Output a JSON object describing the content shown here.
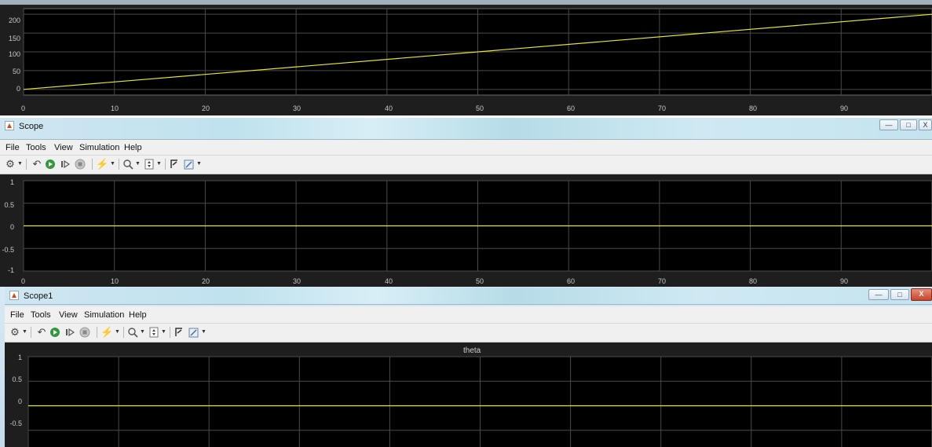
{
  "top_plot": {
    "y_ticks": [
      "200",
      "150",
      "100",
      "50",
      "0"
    ],
    "x_ticks": [
      "0",
      "10",
      "20",
      "30",
      "40",
      "50",
      "60",
      "70",
      "80",
      "90"
    ]
  },
  "scope_window": {
    "title": "Scope",
    "menu": [
      "File",
      "Tools",
      "View",
      "Simulation",
      "Help"
    ],
    "y_ticks": [
      "1",
      "0.5",
      "0",
      "-0.5",
      "-1"
    ],
    "x_ticks": [
      "0",
      "10",
      "20",
      "30",
      "40",
      "50",
      "60",
      "70",
      "80",
      "90"
    ]
  },
  "scope1_window": {
    "title": "Scope1",
    "menu": [
      "File",
      "Tools",
      "View",
      "Simulation",
      "Help"
    ],
    "plot_title": "theta",
    "y_ticks": [
      "1",
      "0.5",
      "0",
      "-0.5"
    ]
  },
  "window_controls": {
    "minimize_symbol": "—",
    "maximize_symbol": "□",
    "close_symbol": "X"
  },
  "toolbar_icons": [
    "settings-icon",
    "step-back-icon",
    "run-icon",
    "step-forward-icon",
    "stop-icon",
    "highlight-icon",
    "zoom-in-icon",
    "zoom-y-icon",
    "scale-icon",
    "style-icon"
  ],
  "colors": {
    "signal": "#e5e52a",
    "axes_bg": "#000000",
    "grid": "#4a4a4a"
  },
  "chart_data": [
    {
      "type": "line",
      "x": [
        0,
        100
      ],
      "series": [
        {
          "values": [
            0,
            200
          ]
        }
      ],
      "xlim": [
        0,
        100
      ],
      "ylim": [
        -15,
        215
      ],
      "grid": true
    },
    {
      "type": "line",
      "x": [
        0,
        100
      ],
      "series": [
        {
          "values": [
            0,
            0
          ]
        }
      ],
      "xlim": [
        0,
        100
      ],
      "ylim": [
        -1,
        1
      ],
      "grid": true
    },
    {
      "type": "line",
      "title": "theta",
      "x": [
        0,
        100
      ],
      "series": [
        {
          "values": [
            0,
            0
          ]
        }
      ],
      "xlim": [
        0,
        100
      ],
      "ylim": [
        -1,
        1
      ],
      "grid": true
    }
  ]
}
